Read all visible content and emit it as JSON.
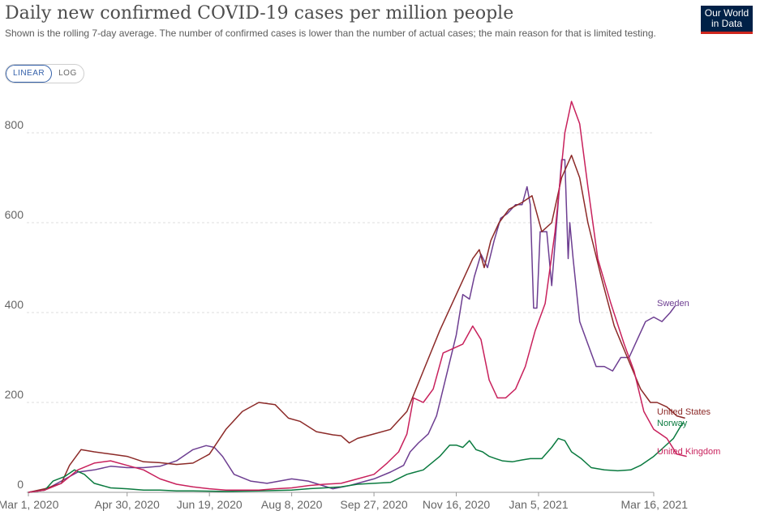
{
  "header": {
    "title": "Daily new confirmed COVID-19 cases per million people",
    "subtitle": "Shown is the rolling 7-day average. The number of confirmed cases is lower than the number of actual cases; the main reason for that is limited testing.",
    "logo_line1": "Our World",
    "logo_line2": "in Data"
  },
  "scale_toggle": {
    "linear_label": "LINEAR",
    "log_label": "LOG",
    "selected": "LINEAR"
  },
  "chart_data": {
    "type": "line",
    "title": "Daily new confirmed COVID-19 cases per million people",
    "xlabel": "",
    "ylabel": "",
    "x_ticks": [
      "Mar 1, 2020",
      "Apr 30, 2020",
      "Jun 19, 2020",
      "Aug 8, 2020",
      "Sep 27, 2020",
      "Nov 16, 2020",
      "Jan 5, 2021",
      "Mar 16, 2021"
    ],
    "x_tick_days": [
      0,
      60,
      110,
      160,
      210,
      260,
      310,
      380
    ],
    "y_ticks": [
      0,
      200,
      400,
      600,
      800
    ],
    "ylim": [
      0,
      880
    ],
    "xlim": [
      "Mar 1, 2020",
      "Mar 16, 2021"
    ],
    "grid": "horizontal dashed",
    "legend": "labels at line ends (right)",
    "series": [
      {
        "name": "Sweden",
        "color": "#6d3e91",
        "points": [
          [
            0,
            0
          ],
          [
            10,
            5
          ],
          [
            20,
            25
          ],
          [
            30,
            45
          ],
          [
            40,
            50
          ],
          [
            50,
            58
          ],
          [
            60,
            55
          ],
          [
            70,
            55
          ],
          [
            80,
            58
          ],
          [
            90,
            70
          ],
          [
            100,
            95
          ],
          [
            108,
            104
          ],
          [
            113,
            100
          ],
          [
            118,
            80
          ],
          [
            125,
            40
          ],
          [
            135,
            25
          ],
          [
            145,
            20
          ],
          [
            160,
            30
          ],
          [
            170,
            25
          ],
          [
            185,
            8
          ],
          [
            195,
            15
          ],
          [
            205,
            25
          ],
          [
            210,
            30
          ],
          [
            220,
            45
          ],
          [
            228,
            60
          ],
          [
            232,
            90
          ],
          [
            237,
            110
          ],
          [
            243,
            130
          ],
          [
            248,
            170
          ],
          [
            252,
            230
          ],
          [
            256,
            290
          ],
          [
            260,
            350
          ],
          [
            264,
            440
          ],
          [
            268,
            430
          ],
          [
            271,
            480
          ],
          [
            275,
            530
          ],
          [
            279,
            500
          ],
          [
            283,
            560
          ],
          [
            287,
            610
          ],
          [
            291,
            620
          ],
          [
            296,
            640
          ],
          [
            300,
            640
          ],
          [
            303,
            680
          ],
          [
            305,
            640
          ],
          [
            307,
            410
          ],
          [
            309,
            410
          ],
          [
            311,
            580
          ],
          [
            315,
            580
          ],
          [
            318,
            460
          ],
          [
            321,
            600
          ],
          [
            324,
            740
          ],
          [
            326,
            740
          ],
          [
            328,
            520
          ],
          [
            329,
            600
          ],
          [
            331,
            520
          ],
          [
            335,
            380
          ],
          [
            340,
            330
          ],
          [
            345,
            280
          ],
          [
            350,
            280
          ],
          [
            355,
            270
          ],
          [
            360,
            300
          ],
          [
            365,
            300
          ],
          [
            370,
            340
          ],
          [
            375,
            380
          ],
          [
            380,
            390
          ],
          [
            385,
            380
          ],
          [
            390,
            400
          ],
          [
            393,
            415
          ]
        ]
      },
      {
        "name": "United States",
        "color": "#8c2a28",
        "points": [
          [
            0,
            0
          ],
          [
            10,
            8
          ],
          [
            20,
            20
          ],
          [
            25,
            60
          ],
          [
            32,
            95
          ],
          [
            40,
            90
          ],
          [
            50,
            85
          ],
          [
            60,
            80
          ],
          [
            70,
            68
          ],
          [
            80,
            66
          ],
          [
            90,
            62
          ],
          [
            100,
            65
          ],
          [
            110,
            85
          ],
          [
            120,
            140
          ],
          [
            130,
            180
          ],
          [
            140,
            200
          ],
          [
            150,
            195
          ],
          [
            158,
            165
          ],
          [
            165,
            158
          ],
          [
            175,
            135
          ],
          [
            185,
            128
          ],
          [
            190,
            126
          ],
          [
            195,
            110
          ],
          [
            200,
            120
          ],
          [
            210,
            130
          ],
          [
            220,
            140
          ],
          [
            230,
            180
          ],
          [
            240,
            270
          ],
          [
            250,
            360
          ],
          [
            260,
            440
          ],
          [
            265,
            480
          ],
          [
            270,
            520
          ],
          [
            274,
            540
          ],
          [
            277,
            500
          ],
          [
            281,
            560
          ],
          [
            286,
            600
          ],
          [
            292,
            630
          ],
          [
            300,
            645
          ],
          [
            306,
            660
          ],
          [
            312,
            580
          ],
          [
            318,
            600
          ],
          [
            324,
            700
          ],
          [
            330,
            750
          ],
          [
            335,
            700
          ],
          [
            340,
            600
          ],
          [
            348,
            480
          ],
          [
            356,
            370
          ],
          [
            364,
            300
          ],
          [
            372,
            230
          ],
          [
            378,
            200
          ],
          [
            382,
            200
          ],
          [
            388,
            190
          ],
          [
            394,
            170
          ],
          [
            399,
            165
          ]
        ]
      },
      {
        "name": "Norway",
        "color": "#0a7a3f",
        "points": [
          [
            0,
            0
          ],
          [
            10,
            5
          ],
          [
            15,
            25
          ],
          [
            22,
            35
          ],
          [
            28,
            50
          ],
          [
            34,
            40
          ],
          [
            40,
            20
          ],
          [
            50,
            10
          ],
          [
            60,
            8
          ],
          [
            70,
            5
          ],
          [
            80,
            5
          ],
          [
            90,
            3
          ],
          [
            100,
            3
          ],
          [
            120,
            2
          ],
          [
            140,
            3
          ],
          [
            160,
            5
          ],
          [
            170,
            8
          ],
          [
            180,
            10
          ],
          [
            190,
            12
          ],
          [
            200,
            18
          ],
          [
            210,
            20
          ],
          [
            220,
            22
          ],
          [
            230,
            40
          ],
          [
            240,
            50
          ],
          [
            250,
            80
          ],
          [
            256,
            105
          ],
          [
            260,
            105
          ],
          [
            264,
            100
          ],
          [
            268,
            115
          ],
          [
            272,
            95
          ],
          [
            276,
            90
          ],
          [
            280,
            80
          ],
          [
            284,
            75
          ],
          [
            288,
            70
          ],
          [
            294,
            68
          ],
          [
            300,
            72
          ],
          [
            305,
            75
          ],
          [
            312,
            75
          ],
          [
            318,
            100
          ],
          [
            322,
            120
          ],
          [
            326,
            115
          ],
          [
            330,
            90
          ],
          [
            336,
            75
          ],
          [
            342,
            55
          ],
          [
            350,
            50
          ],
          [
            358,
            48
          ],
          [
            366,
            50
          ],
          [
            372,
            60
          ],
          [
            380,
            80
          ],
          [
            386,
            100
          ],
          [
            392,
            120
          ],
          [
            396,
            145
          ],
          [
            398,
            155
          ]
        ]
      },
      {
        "name": "United Kingdom",
        "color": "#c8215c",
        "points": [
          [
            0,
            0
          ],
          [
            10,
            5
          ],
          [
            20,
            20
          ],
          [
            30,
            50
          ],
          [
            40,
            65
          ],
          [
            50,
            70
          ],
          [
            60,
            60
          ],
          [
            70,
            50
          ],
          [
            80,
            30
          ],
          [
            90,
            18
          ],
          [
            100,
            12
          ],
          [
            110,
            8
          ],
          [
            120,
            5
          ],
          [
            130,
            5
          ],
          [
            140,
            5
          ],
          [
            150,
            8
          ],
          [
            160,
            10
          ],
          [
            170,
            15
          ],
          [
            180,
            18
          ],
          [
            190,
            20
          ],
          [
            200,
            30
          ],
          [
            210,
            40
          ],
          [
            218,
            65
          ],
          [
            225,
            90
          ],
          [
            230,
            130
          ],
          [
            234,
            210
          ],
          [
            240,
            200
          ],
          [
            246,
            230
          ],
          [
            252,
            310
          ],
          [
            258,
            320
          ],
          [
            264,
            330
          ],
          [
            270,
            370
          ],
          [
            275,
            340
          ],
          [
            280,
            250
          ],
          [
            285,
            210
          ],
          [
            290,
            210
          ],
          [
            296,
            230
          ],
          [
            302,
            280
          ],
          [
            308,
            360
          ],
          [
            314,
            420
          ],
          [
            320,
            580
          ],
          [
            326,
            800
          ],
          [
            330,
            870
          ],
          [
            335,
            820
          ],
          [
            340,
            680
          ],
          [
            346,
            520
          ],
          [
            354,
            420
          ],
          [
            362,
            330
          ],
          [
            368,
            270
          ],
          [
            374,
            180
          ],
          [
            380,
            140
          ],
          [
            388,
            120
          ],
          [
            394,
            85
          ],
          [
            400,
            80
          ]
        ]
      }
    ]
  }
}
